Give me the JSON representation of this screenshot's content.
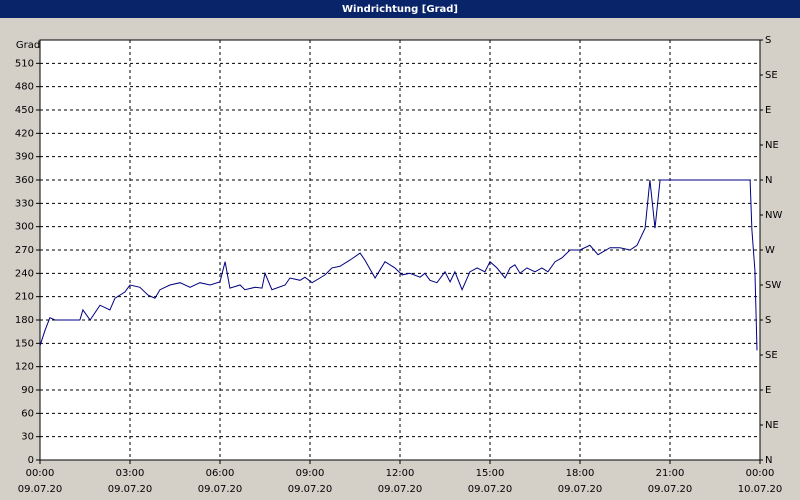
{
  "chart_data": {
    "type": "line",
    "title": "Windrichtung [Grad]",
    "y_label": "Grad",
    "color": "#000080",
    "x": [
      0,
      0.17,
      0.33,
      0.5,
      1.33,
      1.43,
      1.67,
      2.0,
      2.33,
      2.5,
      2.83,
      3.0,
      3.33,
      3.6,
      3.83,
      4.0,
      4.33,
      4.67,
      5.0,
      5.33,
      5.67,
      6.0,
      6.17,
      6.33,
      6.67,
      6.83,
      7.17,
      7.4,
      7.5,
      7.73,
      8.17,
      8.33,
      8.67,
      8.83,
      9.07,
      9.33,
      9.5,
      9.73,
      10.0,
      10.33,
      10.67,
      10.83,
      11.17,
      11.5,
      11.83,
      12.07,
      12.33,
      12.67,
      12.83,
      13.0,
      13.23,
      13.5,
      13.67,
      13.83,
      14.07,
      14.33,
      14.57,
      14.83,
      15.0,
      15.23,
      15.5,
      15.67,
      15.83,
      16.0,
      16.23,
      16.5,
      16.73,
      16.93,
      17.17,
      17.4,
      17.67,
      18.0,
      18.33,
      18.6,
      19.0,
      19.33,
      19.67,
      19.9,
      20.17,
      20.33,
      20.5,
      20.67,
      23.67,
      23.73,
      23.83,
      23.9
    ],
    "values": [
      147,
      167,
      183,
      180,
      180,
      193,
      180,
      199,
      193,
      208,
      216,
      225,
      222,
      212,
      208,
      219,
      225,
      228,
      222,
      228,
      225,
      229,
      255,
      221,
      225,
      219,
      222,
      221,
      240,
      219,
      225,
      234,
      231,
      235,
      228,
      234,
      238,
      247,
      249,
      257,
      266,
      257,
      234,
      255,
      247,
      238,
      240,
      235,
      240,
      231,
      228,
      242,
      229,
      242,
      219,
      242,
      247,
      242,
      255,
      247,
      234,
      247,
      251,
      240,
      247,
      242,
      247,
      242,
      255,
      260,
      270,
      270,
      276,
      264,
      273,
      273,
      270,
      276,
      298,
      360,
      298,
      360,
      360,
      296,
      244,
      141
    ],
    "xlim": [
      0,
      24
    ],
    "xticks": [
      {
        "value": 0,
        "label": "00:00"
      },
      {
        "value": 3,
        "label": "03:00"
      },
      {
        "value": 6,
        "label": "06:00"
      },
      {
        "value": 9,
        "label": "09:00"
      },
      {
        "value": 12,
        "label": "12:00"
      },
      {
        "value": 15,
        "label": "15:00"
      },
      {
        "value": 18,
        "label": "18:00"
      },
      {
        "value": 21,
        "label": "21:00"
      },
      {
        "value": 24,
        "label": "00:00"
      }
    ],
    "xtick_dates": [
      "09.07.20",
      "09.07.20",
      "09.07.20",
      "09.07.20",
      "09.07.20",
      "09.07.20",
      "09.07.20",
      "09.07.20",
      "10.07.20"
    ],
    "ylim": [
      0,
      540
    ],
    "yticks": [
      0,
      30,
      60,
      90,
      120,
      150,
      180,
      210,
      240,
      270,
      300,
      330,
      360,
      390,
      420,
      450,
      480,
      510
    ],
    "y2lim": [
      0,
      540
    ],
    "y2ticks": [
      {
        "value": 0,
        "label": "N"
      },
      {
        "value": 45,
        "label": "NE"
      },
      {
        "value": 90,
        "label": "E"
      },
      {
        "value": 135,
        "label": "SE"
      },
      {
        "value": 180,
        "label": "S"
      },
      {
        "value": 225,
        "label": "SW"
      },
      {
        "value": 270,
        "label": "W"
      },
      {
        "value": 315,
        "label": "NW"
      },
      {
        "value": 360,
        "label": "N"
      },
      {
        "value": 405,
        "label": "NE"
      },
      {
        "value": 450,
        "label": "E"
      },
      {
        "value": 495,
        "label": "SE"
      },
      {
        "value": 540,
        "label": "S"
      }
    ],
    "grid": true
  }
}
